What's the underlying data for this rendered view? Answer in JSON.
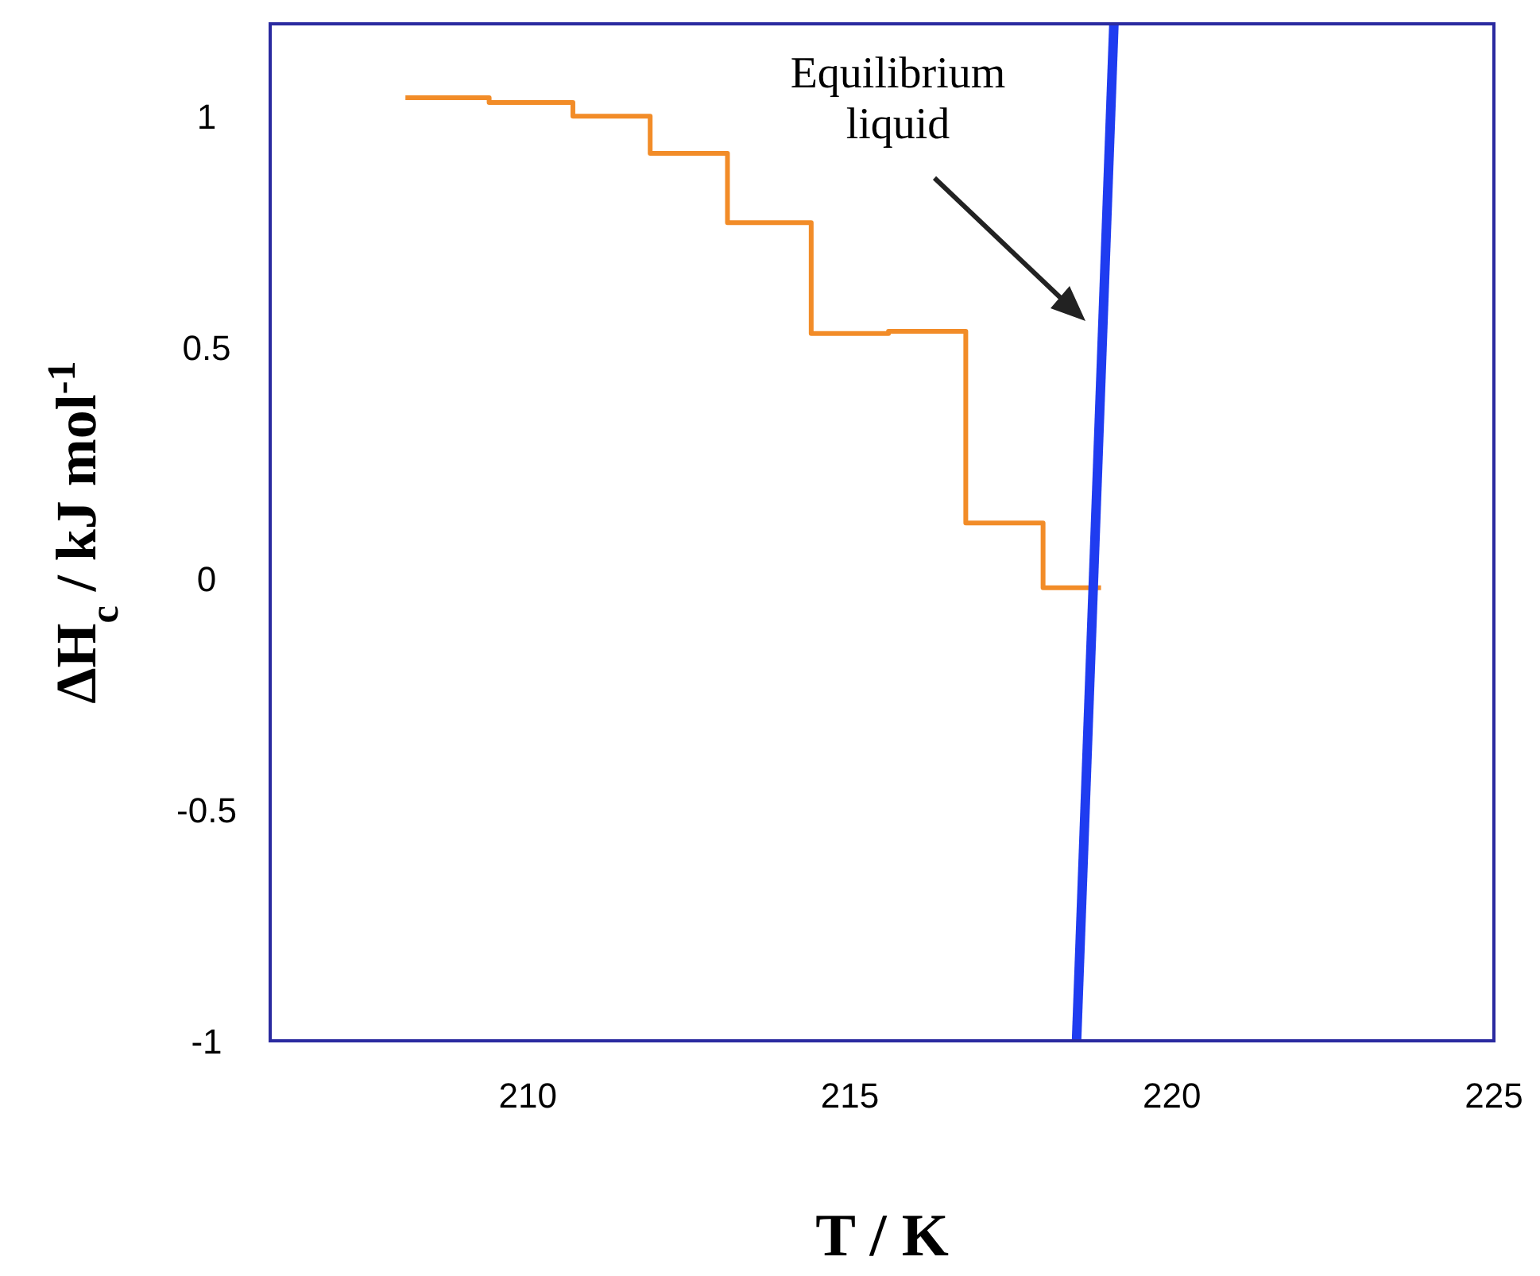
{
  "chart_data": {
    "type": "step",
    "xlabel": "T / K",
    "ylabel": "ΔH$_{c}$ / kJ mol$^{-1}$",
    "xlim": [
      206,
      225
    ],
    "xticks": [
      210,
      215,
      220,
      225
    ],
    "ylim": [
      -1,
      1.2
    ],
    "yticks": [
      -1,
      -0.5,
      0,
      0.5,
      1
    ],
    "series": [
      {
        "color": "#f28c28",
        "x": [
          208.1,
          209.4,
          210.7,
          211.9,
          213.1,
          214.4,
          215.6,
          216.8,
          218.0,
          218.9
        ],
        "values": [
          1.04,
          1.03,
          1.0,
          0.92,
          0.77,
          0.53,
          0.535,
          0.12,
          -0.02,
          -0.02
        ]
      },
      {
        "type": "line",
        "color": "#1f3cf0",
        "x": [
          218.52,
          219.1
        ],
        "values": [
          -1,
          1.2
        ]
      }
    ],
    "annotations": [
      "Equilibrium\nliquid"
    ],
    "grid": false
  }
}
